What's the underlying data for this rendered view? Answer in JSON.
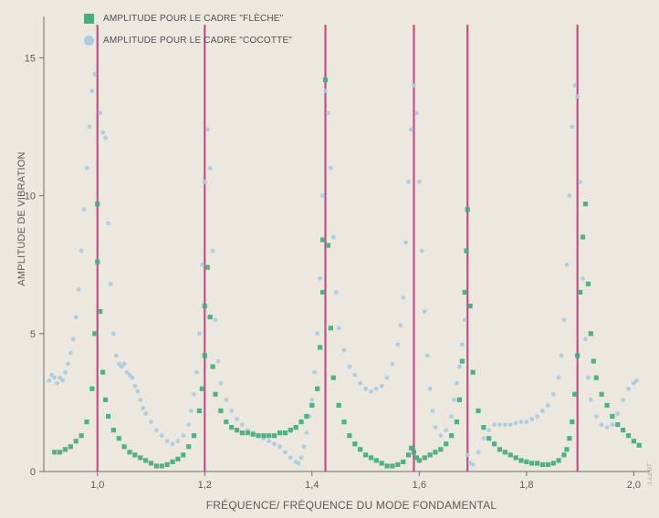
{
  "legend": {
    "items": [
      {
        "label": "AMPLITUDE POUR LE CADRE \"FLÈCHE\"",
        "color": "#49ad82",
        "marker": "square"
      },
      {
        "label": "AMPLITUDE POUR LE CADRE \"COCOTTE\"",
        "color": "#aecce0",
        "marker": "circle"
      }
    ]
  },
  "credit": "J.-Ld GT",
  "chart_data": {
    "type": "scatter",
    "title": "",
    "xlabel": "FRÉQUENCE/ FRÉQUENCE DU MODE FONDAMENTAL",
    "ylabel": "AMPLITUDE DE VIBRATION",
    "xlim": [
      0.9,
      2.03
    ],
    "ylim": [
      0,
      16.5
    ],
    "x_ticks": [
      1.0,
      1.2,
      1.4,
      1.6,
      1.8,
      2.0
    ],
    "x_tick_labels": [
      "1,0",
      "1,2",
      "1,4",
      "1,6",
      "1,8",
      "2,0"
    ],
    "y_ticks": [
      0,
      5,
      10,
      15
    ],
    "y_tick_labels": [
      "0",
      "5",
      "10",
      "15"
    ],
    "grid": false,
    "legend_position": "top-left",
    "resonance_lines": {
      "x": [
        1.0,
        1.2,
        1.425,
        1.59,
        1.69,
        1.895
      ],
      "color": "#c03e7e"
    },
    "series": [
      {
        "name": "AMPLITUDE POUR LE CADRE \"FLÈCHE\"",
        "color": "#49ad82",
        "marker": "square",
        "points": [
          [
            0.92,
            0.7
          ],
          [
            0.93,
            0.7
          ],
          [
            0.94,
            0.8
          ],
          [
            0.95,
            0.9
          ],
          [
            0.96,
            1.1
          ],
          [
            0.97,
            1.3
          ],
          [
            0.98,
            1.8
          ],
          [
            0.99,
            3.0
          ],
          [
            0.995,
            5.0
          ],
          [
            1.0,
            7.6
          ],
          [
            1.0,
            9.7
          ],
          [
            1.005,
            5.8
          ],
          [
            1.01,
            3.6
          ],
          [
            1.015,
            2.6
          ],
          [
            1.02,
            2.0
          ],
          [
            1.03,
            1.5
          ],
          [
            1.04,
            1.2
          ],
          [
            1.05,
            0.9
          ],
          [
            1.06,
            0.7
          ],
          [
            1.07,
            0.6
          ],
          [
            1.08,
            0.5
          ],
          [
            1.09,
            0.4
          ],
          [
            1.1,
            0.3
          ],
          [
            1.11,
            0.2
          ],
          [
            1.12,
            0.2
          ],
          [
            1.13,
            0.25
          ],
          [
            1.14,
            0.35
          ],
          [
            1.15,
            0.45
          ],
          [
            1.16,
            0.6
          ],
          [
            1.17,
            0.9
          ],
          [
            1.18,
            1.3
          ],
          [
            1.19,
            2.2
          ],
          [
            1.195,
            3.0
          ],
          [
            1.2,
            4.2
          ],
          [
            1.2,
            6.0
          ],
          [
            1.205,
            7.4
          ],
          [
            1.21,
            5.6
          ],
          [
            1.215,
            3.8
          ],
          [
            1.22,
            2.8
          ],
          [
            1.23,
            2.2
          ],
          [
            1.24,
            1.8
          ],
          [
            1.25,
            1.6
          ],
          [
            1.26,
            1.5
          ],
          [
            1.27,
            1.4
          ],
          [
            1.28,
            1.4
          ],
          [
            1.29,
            1.35
          ],
          [
            1.3,
            1.3
          ],
          [
            1.31,
            1.3
          ],
          [
            1.32,
            1.3
          ],
          [
            1.33,
            1.3
          ],
          [
            1.34,
            1.4
          ],
          [
            1.35,
            1.4
          ],
          [
            1.36,
            1.5
          ],
          [
            1.37,
            1.6
          ],
          [
            1.38,
            1.8
          ],
          [
            1.39,
            2.0
          ],
          [
            1.4,
            2.4
          ],
          [
            1.41,
            3.0
          ],
          [
            1.415,
            4.5
          ],
          [
            1.42,
            6.5
          ],
          [
            1.42,
            8.4
          ],
          [
            1.425,
            14.2
          ],
          [
            1.43,
            8.2
          ],
          [
            1.435,
            5.2
          ],
          [
            1.44,
            3.4
          ],
          [
            1.45,
            2.4
          ],
          [
            1.46,
            1.8
          ],
          [
            1.47,
            1.3
          ],
          [
            1.48,
            1.0
          ],
          [
            1.49,
            0.8
          ],
          [
            1.5,
            0.6
          ],
          [
            1.51,
            0.5
          ],
          [
            1.52,
            0.4
          ],
          [
            1.53,
            0.3
          ],
          [
            1.54,
            0.2
          ],
          [
            1.55,
            0.2
          ],
          [
            1.56,
            0.25
          ],
          [
            1.57,
            0.35
          ],
          [
            1.58,
            0.6
          ],
          [
            1.585,
            0.85
          ],
          [
            1.59,
            0.7
          ],
          [
            1.595,
            0.5
          ],
          [
            1.6,
            0.4
          ],
          [
            1.61,
            0.5
          ],
          [
            1.62,
            0.6
          ],
          [
            1.63,
            0.7
          ],
          [
            1.64,
            0.8
          ],
          [
            1.65,
            1.0
          ],
          [
            1.66,
            1.3
          ],
          [
            1.67,
            1.8
          ],
          [
            1.675,
            2.6
          ],
          [
            1.68,
            4.0
          ],
          [
            1.685,
            6.5
          ],
          [
            1.688,
            8.0
          ],
          [
            1.69,
            9.5
          ],
          [
            1.695,
            6.0
          ],
          [
            1.7,
            3.6
          ],
          [
            1.71,
            2.2
          ],
          [
            1.72,
            1.6
          ],
          [
            1.73,
            1.2
          ],
          [
            1.74,
            1.0
          ],
          [
            1.75,
            0.8
          ],
          [
            1.76,
            0.7
          ],
          [
            1.77,
            0.6
          ],
          [
            1.78,
            0.5
          ],
          [
            1.79,
            0.4
          ],
          [
            1.8,
            0.35
          ],
          [
            1.81,
            0.3
          ],
          [
            1.82,
            0.3
          ],
          [
            1.83,
            0.25
          ],
          [
            1.84,
            0.25
          ],
          [
            1.85,
            0.3
          ],
          [
            1.86,
            0.4
          ],
          [
            1.87,
            0.6
          ],
          [
            1.875,
            0.8
          ],
          [
            1.88,
            1.2
          ],
          [
            1.885,
            1.8
          ],
          [
            1.89,
            2.8
          ],
          [
            1.895,
            4.2
          ],
          [
            1.9,
            6.5
          ],
          [
            1.905,
            8.5
          ],
          [
            1.91,
            9.7
          ],
          [
            1.915,
            6.8
          ],
          [
            1.92,
            5.0
          ],
          [
            1.925,
            4.0
          ],
          [
            1.93,
            3.4
          ],
          [
            1.94,
            2.8
          ],
          [
            1.95,
            2.4
          ],
          [
            1.96,
            2.0
          ],
          [
            1.97,
            1.7
          ],
          [
            1.98,
            1.5
          ],
          [
            1.99,
            1.3
          ],
          [
            2.0,
            1.1
          ],
          [
            2.01,
            0.95
          ]
        ]
      },
      {
        "name": "AMPLITUDE POUR LE CADRE \"COCOTTE\"",
        "color": "#aecce0",
        "marker": "circle",
        "points": [
          [
            0.91,
            3.3
          ],
          [
            0.915,
            3.5
          ],
          [
            0.92,
            3.4
          ],
          [
            0.925,
            3.2
          ],
          [
            0.93,
            3.4
          ],
          [
            0.935,
            3.3
          ],
          [
            0.94,
            3.6
          ],
          [
            0.945,
            3.9
          ],
          [
            0.95,
            4.3
          ],
          [
            0.955,
            4.8
          ],
          [
            0.96,
            5.6
          ],
          [
            0.965,
            6.6
          ],
          [
            0.97,
            8.0
          ],
          [
            0.975,
            9.5
          ],
          [
            0.98,
            11.0
          ],
          [
            0.985,
            12.5
          ],
          [
            0.99,
            13.8
          ],
          [
            0.995,
            14.4
          ],
          [
            1.005,
            13.0
          ],
          [
            1.01,
            12.3
          ],
          [
            1.015,
            12.1
          ],
          [
            1.02,
            9.0
          ],
          [
            1.025,
            6.8
          ],
          [
            1.03,
            5.0
          ],
          [
            1.035,
            4.2
          ],
          [
            1.04,
            3.9
          ],
          [
            1.045,
            3.8
          ],
          [
            1.05,
            3.9
          ],
          [
            1.055,
            3.6
          ],
          [
            1.06,
            3.5
          ],
          [
            1.065,
            3.4
          ],
          [
            1.07,
            3.1
          ],
          [
            1.075,
            2.9
          ],
          [
            1.08,
            2.6
          ],
          [
            1.085,
            2.3
          ],
          [
            1.09,
            2.1
          ],
          [
            1.1,
            1.8
          ],
          [
            1.11,
            1.5
          ],
          [
            1.12,
            1.3
          ],
          [
            1.13,
            1.1
          ],
          [
            1.14,
            1.0
          ],
          [
            1.15,
            1.1
          ],
          [
            1.16,
            1.3
          ],
          [
            1.17,
            1.7
          ],
          [
            1.175,
            2.2
          ],
          [
            1.18,
            2.8
          ],
          [
            1.185,
            3.6
          ],
          [
            1.19,
            5.0
          ],
          [
            1.195,
            7.5
          ],
          [
            1.2,
            10.5
          ],
          [
            1.205,
            12.4
          ],
          [
            1.21,
            11.0
          ],
          [
            1.215,
            8.0
          ],
          [
            1.22,
            5.5
          ],
          [
            1.225,
            4.0
          ],
          [
            1.23,
            3.2
          ],
          [
            1.24,
            2.6
          ],
          [
            1.25,
            2.2
          ],
          [
            1.26,
            1.9
          ],
          [
            1.27,
            1.7
          ],
          [
            1.28,
            1.5
          ],
          [
            1.29,
            1.4
          ],
          [
            1.3,
            1.3
          ],
          [
            1.31,
            1.2
          ],
          [
            1.32,
            1.1
          ],
          [
            1.33,
            1.0
          ],
          [
            1.34,
            0.9
          ],
          [
            1.35,
            0.7
          ],
          [
            1.36,
            0.5
          ],
          [
            1.37,
            0.35
          ],
          [
            1.375,
            0.3
          ],
          [
            1.38,
            0.5
          ],
          [
            1.385,
            0.9
          ],
          [
            1.39,
            1.4
          ],
          [
            1.395,
            2.0
          ],
          [
            1.4,
            2.6
          ],
          [
            1.405,
            3.6
          ],
          [
            1.41,
            5.0
          ],
          [
            1.415,
            7.0
          ],
          [
            1.42,
            10.0
          ],
          [
            1.425,
            13.8
          ],
          [
            1.43,
            13.0
          ],
          [
            1.435,
            11.0
          ],
          [
            1.44,
            8.5
          ],
          [
            1.445,
            6.5
          ],
          [
            1.45,
            5.2
          ],
          [
            1.46,
            4.4
          ],
          [
            1.47,
            3.8
          ],
          [
            1.48,
            3.5
          ],
          [
            1.49,
            3.2
          ],
          [
            1.5,
            3.0
          ],
          [
            1.51,
            2.9
          ],
          [
            1.52,
            3.0
          ],
          [
            1.53,
            3.1
          ],
          [
            1.54,
            3.4
          ],
          [
            1.55,
            3.9
          ],
          [
            1.56,
            4.6
          ],
          [
            1.565,
            5.3
          ],
          [
            1.57,
            6.3
          ],
          [
            1.575,
            8.3
          ],
          [
            1.58,
            10.5
          ],
          [
            1.585,
            12.4
          ],
          [
            1.59,
            14.0
          ],
          [
            1.595,
            13.0
          ],
          [
            1.6,
            10.5
          ],
          [
            1.605,
            8.0
          ],
          [
            1.61,
            5.8
          ],
          [
            1.615,
            4.2
          ],
          [
            1.62,
            3.0
          ],
          [
            1.625,
            2.2
          ],
          [
            1.63,
            1.6
          ],
          [
            1.64,
            1.3
          ],
          [
            1.65,
            1.5
          ],
          [
            1.66,
            2.0
          ],
          [
            1.665,
            2.6
          ],
          [
            1.67,
            3.2
          ],
          [
            1.675,
            3.8
          ],
          [
            1.68,
            4.6
          ],
          [
            1.685,
            5.5
          ],
          [
            1.69,
            0.6
          ],
          [
            1.695,
            0.3
          ],
          [
            1.7,
            0.25
          ],
          [
            1.71,
            0.7
          ],
          [
            1.72,
            1.2
          ],
          [
            1.73,
            1.5
          ],
          [
            1.74,
            1.7
          ],
          [
            1.75,
            1.7
          ],
          [
            1.76,
            1.7
          ],
          [
            1.77,
            1.7
          ],
          [
            1.78,
            1.75
          ],
          [
            1.79,
            1.8
          ],
          [
            1.8,
            1.8
          ],
          [
            1.81,
            1.9
          ],
          [
            1.82,
            2.0
          ],
          [
            1.83,
            2.2
          ],
          [
            1.84,
            2.4
          ],
          [
            1.85,
            2.8
          ],
          [
            1.86,
            3.4
          ],
          [
            1.865,
            4.2
          ],
          [
            1.87,
            5.5
          ],
          [
            1.875,
            7.5
          ],
          [
            1.88,
            10.0
          ],
          [
            1.885,
            12.5
          ],
          [
            1.89,
            14.0
          ],
          [
            1.895,
            13.6
          ],
          [
            1.9,
            10.5
          ],
          [
            1.905,
            7.0
          ],
          [
            1.91,
            4.8
          ],
          [
            1.915,
            3.4
          ],
          [
            1.92,
            2.6
          ],
          [
            1.93,
            2.0
          ],
          [
            1.94,
            1.7
          ],
          [
            1.95,
            1.6
          ],
          [
            1.96,
            1.7
          ],
          [
            1.97,
            2.1
          ],
          [
            1.98,
            2.6
          ],
          [
            1.99,
            3.0
          ],
          [
            2.0,
            3.2
          ],
          [
            2.005,
            3.3
          ]
        ]
      }
    ]
  }
}
